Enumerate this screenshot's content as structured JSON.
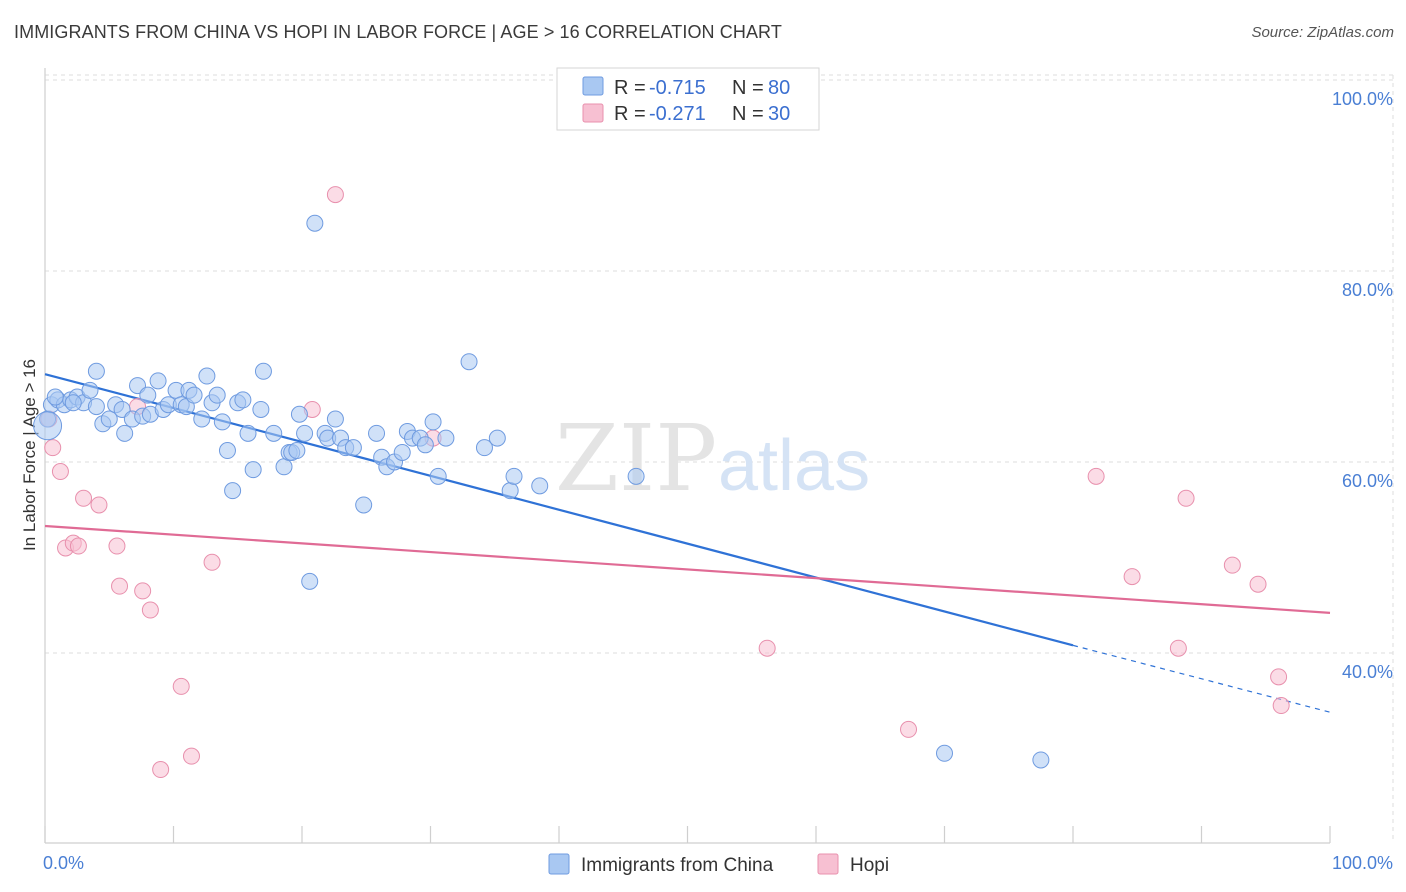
{
  "header": {
    "title": "IMMIGRANTS FROM CHINA VS HOPI IN LABOR FORCE | AGE > 16 CORRELATION CHART",
    "source": "Source: ZipAtlas.com"
  },
  "watermark": {
    "zip": "ZIP",
    "atlas": "atlas"
  },
  "legend_top": {
    "rows": [
      {
        "r_label": "R = ",
        "r_value": "-0.715",
        "n_label": "N = ",
        "n_value": "80"
      },
      {
        "r_label": "R = ",
        "r_value": "-0.271",
        "n_label": "N = ",
        "n_value": "30"
      }
    ]
  },
  "legend_bottom": {
    "items": [
      {
        "label": "Immigrants from China"
      },
      {
        "label": "Hopi"
      }
    ]
  },
  "colors": {
    "china_fill": "#a9c8f2",
    "china_stroke": "#6f9be0",
    "china_line": "#2f72d6",
    "hopi_fill": "#f7c0d2",
    "hopi_stroke": "#e890ad",
    "hopi_line": "#e06b95",
    "tick_label": "#4a7fd4",
    "grid": "#dddddd"
  },
  "chart_data": {
    "type": "scatter",
    "title": "IMMIGRANTS FROM CHINA VS HOPI IN LABOR FORCE | AGE > 16 CORRELATION CHART",
    "xlabel": "",
    "ylabel": "In Labor Force | Age > 16",
    "xlim": [
      0,
      100
    ],
    "ylim": [
      20,
      102
    ],
    "x_tick_labels": [
      "0.0%",
      "100.0%"
    ],
    "y_ticks": [
      40,
      60,
      80,
      100
    ],
    "y_tick_labels": [
      "40.0%",
      "60.0%",
      "80.0%",
      "100.0%"
    ],
    "grid": true,
    "legend_position": "top-center",
    "series": [
      {
        "name": "Immigrants from China",
        "r": -0.715,
        "n": 80,
        "points": [
          [
            0.2,
            64.5
          ],
          [
            0.5,
            66
          ],
          [
            1,
            66.5
          ],
          [
            1.5,
            66
          ],
          [
            2,
            66.5
          ],
          [
            2.5,
            66.8
          ],
          [
            3,
            66.2
          ],
          [
            3.5,
            67.5
          ],
          [
            4,
            65.8
          ],
          [
            4,
            69.5
          ],
          [
            4.5,
            64
          ],
          [
            5,
            64.5
          ],
          [
            5.5,
            66
          ],
          [
            6,
            65.5
          ],
          [
            6.2,
            63
          ],
          [
            6.8,
            64.5
          ],
          [
            7.2,
            68
          ],
          [
            7.6,
            64.8
          ],
          [
            8,
            67
          ],
          [
            8.2,
            65
          ],
          [
            8.8,
            68.5
          ],
          [
            9.2,
            65.5
          ],
          [
            9.6,
            66
          ],
          [
            10.2,
            67.5
          ],
          [
            10.6,
            66
          ],
          [
            11,
            65.8
          ],
          [
            11.2,
            67.5
          ],
          [
            11.6,
            67
          ],
          [
            12.2,
            64.5
          ],
          [
            12.6,
            69
          ],
          [
            13,
            66.2
          ],
          [
            13.4,
            67
          ],
          [
            13.8,
            64.2
          ],
          [
            14.2,
            61.2
          ],
          [
            14.6,
            57
          ],
          [
            15,
            66.2
          ],
          [
            15.4,
            66.5
          ],
          [
            15.8,
            63
          ],
          [
            16.2,
            59.2
          ],
          [
            16.8,
            65.5
          ],
          [
            17,
            69.5
          ],
          [
            17.8,
            63
          ],
          [
            18.6,
            59.5
          ],
          [
            19,
            61
          ],
          [
            19.2,
            61
          ],
          [
            19.6,
            61.2
          ],
          [
            19.8,
            65
          ],
          [
            20.2,
            63
          ],
          [
            20.6,
            47.5
          ],
          [
            21,
            85
          ],
          [
            21.8,
            63
          ],
          [
            22,
            62.5
          ],
          [
            22.6,
            64.5
          ],
          [
            23,
            62.5
          ],
          [
            23.4,
            61.5
          ],
          [
            24,
            61.5
          ],
          [
            24.8,
            55.5
          ],
          [
            25.8,
            63
          ],
          [
            26.2,
            60.5
          ],
          [
            26.6,
            59.5
          ],
          [
            27.2,
            60
          ],
          [
            27.8,
            61
          ],
          [
            28.2,
            63.2
          ],
          [
            28.6,
            62.5
          ],
          [
            29.2,
            62.5
          ],
          [
            29.6,
            61.8
          ],
          [
            30.2,
            64.2
          ],
          [
            30.6,
            58.5
          ],
          [
            31.2,
            62.5
          ],
          [
            33,
            70.5
          ],
          [
            34.2,
            61.5
          ],
          [
            35.2,
            62.5
          ],
          [
            36.2,
            57
          ],
          [
            36.5,
            58.5
          ],
          [
            38.5,
            57.5
          ],
          [
            46,
            58.5
          ],
          [
            70,
            29.5
          ],
          [
            77.5,
            28.8
          ],
          [
            0.8,
            66.8
          ],
          [
            2.2,
            66.2
          ]
        ],
        "trend": {
          "x": [
            0,
            80
          ],
          "y": [
            69.2,
            40.8
          ],
          "dashed_extension": {
            "x": [
              80,
              100
            ],
            "y": [
              40.8,
              33.8
            ]
          }
        }
      },
      {
        "name": "Hopi",
        "r": -0.271,
        "n": 30,
        "points": [
          [
            0.3,
            64.5
          ],
          [
            0.6,
            61.5
          ],
          [
            1.2,
            59
          ],
          [
            1.6,
            51
          ],
          [
            2.2,
            51.5
          ],
          [
            2.6,
            51.2
          ],
          [
            3,
            56.2
          ],
          [
            4.2,
            55.5
          ],
          [
            5.6,
            51.2
          ],
          [
            5.8,
            47
          ],
          [
            7.2,
            65.8
          ],
          [
            7.6,
            46.5
          ],
          [
            8.2,
            44.5
          ],
          [
            9,
            27.8
          ],
          [
            10.6,
            36.5
          ],
          [
            11.4,
            29.2
          ],
          [
            13,
            49.5
          ],
          [
            20.8,
            65.5
          ],
          [
            22.6,
            88
          ],
          [
            30.2,
            62.5
          ],
          [
            56.2,
            40.5
          ],
          [
            67.2,
            32
          ],
          [
            81.8,
            58.5
          ],
          [
            84.6,
            48
          ],
          [
            88.2,
            40.5
          ],
          [
            88.8,
            56.2
          ],
          [
            92.4,
            49.2
          ],
          [
            94.4,
            47.2
          ],
          [
            96,
            37.5
          ],
          [
            96.2,
            34.5
          ]
        ],
        "trend": {
          "x": [
            0,
            100
          ],
          "y": [
            53.3,
            44.2
          ]
        }
      }
    ]
  }
}
